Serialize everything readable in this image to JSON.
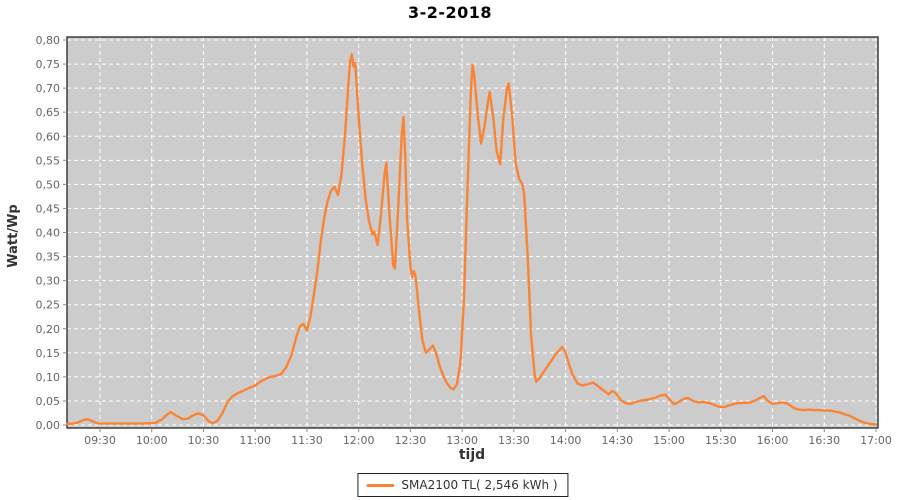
{
  "title": "3-2-2018",
  "chart_data": {
    "type": "line",
    "title": "3-2-2018",
    "xlabel": "tijd",
    "ylabel": "Watt/Wp",
    "legend": "SMA2100 TL( 2,546 kWh )",
    "legend_position": "bottom-center",
    "grid": true,
    "ylim": [
      0,
      0.8
    ],
    "x_range": [
      "09:11",
      "17:00"
    ],
    "x_ticks": [
      "09:30",
      "10:00",
      "10:30",
      "11:00",
      "11:30",
      "12:00",
      "12:30",
      "13:00",
      "13:30",
      "14:00",
      "14:30",
      "15:00",
      "15:30",
      "16:00",
      "16:30",
      "17:00"
    ],
    "y_ticks": [
      0,
      0.05,
      0.1,
      0.15,
      0.2,
      0.25,
      0.3,
      0.35,
      0.4,
      0.45,
      0.5,
      0.55,
      0.6,
      0.65,
      0.7,
      0.75,
      0.8
    ],
    "y_tick_labels": [
      "0,00",
      "0,05",
      "0,10",
      "0,15",
      "0,20",
      "0,25",
      "0,30",
      "0,35",
      "0,40",
      "0,45",
      "0,50",
      "0,55",
      "0,60",
      "0,65",
      "0,70",
      "0,75",
      "0,80"
    ],
    "colors": {
      "line": "#F98436",
      "plot_bg": "#CCCCCC",
      "grid": "#FFFFFF",
      "plot_border": "#222222",
      "tick": "#888888",
      "axis_text": "#666666",
      "axis_title_text": "#333333",
      "title_text": "#000000"
    },
    "series": [
      {
        "name": "SMA2100 TL( 2,546 kWh )",
        "points": [
          [
            "09:11",
            0.002
          ],
          [
            "09:14",
            0.003
          ],
          [
            "09:17",
            0.005
          ],
          [
            "09:20",
            0.01
          ],
          [
            "09:23",
            0.012
          ],
          [
            "09:26",
            0.007
          ],
          [
            "09:29",
            0.003
          ],
          [
            "09:35",
            0.003
          ],
          [
            "09:45",
            0.003
          ],
          [
            "09:55",
            0.003
          ],
          [
            "10:02",
            0.004
          ],
          [
            "10:06",
            0.012
          ],
          [
            "10:09",
            0.022
          ],
          [
            "10:11",
            0.027
          ],
          [
            "10:14",
            0.02
          ],
          [
            "10:18",
            0.012
          ],
          [
            "10:21",
            0.013
          ],
          [
            "10:24",
            0.02
          ],
          [
            "10:27",
            0.024
          ],
          [
            "10:30",
            0.02
          ],
          [
            "10:33",
            0.008
          ],
          [
            "10:35",
            0.004
          ],
          [
            "10:38",
            0.008
          ],
          [
            "10:41",
            0.025
          ],
          [
            "10:44",
            0.048
          ],
          [
            "10:47",
            0.06
          ],
          [
            "10:50",
            0.066
          ],
          [
            "10:53",
            0.071
          ],
          [
            "10:56",
            0.076
          ],
          [
            "11:00",
            0.082
          ],
          [
            "11:03",
            0.09
          ],
          [
            "11:06",
            0.096
          ],
          [
            "11:09",
            0.1
          ],
          [
            "11:12",
            0.102
          ],
          [
            "11:15",
            0.106
          ],
          [
            "11:18",
            0.12
          ],
          [
            "11:21",
            0.145
          ],
          [
            "11:24",
            0.185
          ],
          [
            "11:26",
            0.205
          ],
          [
            "11:28",
            0.21
          ],
          [
            "11:30",
            0.196
          ],
          [
            "11:32",
            0.225
          ],
          [
            "11:34",
            0.27
          ],
          [
            "11:36",
            0.32
          ],
          [
            "11:38",
            0.38
          ],
          [
            "11:40",
            0.43
          ],
          [
            "11:42",
            0.465
          ],
          [
            "11:44",
            0.487
          ],
          [
            "11:46",
            0.495
          ],
          [
            "11:48",
            0.478
          ],
          [
            "11:50",
            0.52
          ],
          [
            "11:52",
            0.6
          ],
          [
            "11:54",
            0.705
          ],
          [
            "11:55",
            0.755
          ],
          [
            "11:56",
            0.77
          ],
          [
            "11:57",
            0.745
          ],
          [
            "11:58",
            0.752
          ],
          [
            "12:00",
            0.64
          ],
          [
            "12:02",
            0.545
          ],
          [
            "12:04",
            0.47
          ],
          [
            "12:06",
            0.424
          ],
          [
            "12:08",
            0.396
          ],
          [
            "12:09",
            0.402
          ],
          [
            "12:11",
            0.374
          ],
          [
            "12:13",
            0.44
          ],
          [
            "12:15",
            0.52
          ],
          [
            "12:16",
            0.545
          ],
          [
            "12:18",
            0.43
          ],
          [
            "12:20",
            0.332
          ],
          [
            "12:21",
            0.325
          ],
          [
            "12:23",
            0.455
          ],
          [
            "12:25",
            0.605
          ],
          [
            "12:26",
            0.64
          ],
          [
            "12:27",
            0.56
          ],
          [
            "12:28",
            0.43
          ],
          [
            "12:30",
            0.33
          ],
          [
            "12:31",
            0.308
          ],
          [
            "12:32",
            0.32
          ],
          [
            "12:33",
            0.308
          ],
          [
            "12:35",
            0.238
          ],
          [
            "12:37",
            0.175
          ],
          [
            "12:39",
            0.15
          ],
          [
            "12:41",
            0.157
          ],
          [
            "12:43",
            0.165
          ],
          [
            "12:45",
            0.148
          ],
          [
            "12:47",
            0.122
          ],
          [
            "12:49",
            0.103
          ],
          [
            "12:51",
            0.088
          ],
          [
            "12:53",
            0.078
          ],
          [
            "12:55",
            0.074
          ],
          [
            "12:57",
            0.085
          ],
          [
            "12:59",
            0.13
          ],
          [
            "13:01",
            0.26
          ],
          [
            "13:03",
            0.48
          ],
          [
            "13:05",
            0.69
          ],
          [
            "13:06",
            0.748
          ],
          [
            "13:07",
            0.728
          ],
          [
            "13:09",
            0.645
          ],
          [
            "13:11",
            0.585
          ],
          [
            "13:13",
            0.622
          ],
          [
            "13:15",
            0.672
          ],
          [
            "13:16",
            0.692
          ],
          [
            "13:18",
            0.64
          ],
          [
            "13:20",
            0.57
          ],
          [
            "13:22",
            0.542
          ],
          [
            "13:24",
            0.64
          ],
          [
            "13:26",
            0.7
          ],
          [
            "13:27",
            0.71
          ],
          [
            "13:29",
            0.645
          ],
          [
            "13:31",
            0.545
          ],
          [
            "13:33",
            0.512
          ],
          [
            "13:35",
            0.5
          ],
          [
            "13:36",
            0.478
          ],
          [
            "13:38",
            0.35
          ],
          [
            "13:40",
            0.185
          ],
          [
            "13:42",
            0.105
          ],
          [
            "13:43",
            0.09
          ],
          [
            "13:45",
            0.098
          ],
          [
            "13:48",
            0.114
          ],
          [
            "13:51",
            0.13
          ],
          [
            "13:54",
            0.146
          ],
          [
            "13:57",
            0.158
          ],
          [
            "13:58",
            0.162
          ],
          [
            "14:00",
            0.15
          ],
          [
            "14:02",
            0.126
          ],
          [
            "14:04",
            0.105
          ],
          [
            "14:07",
            0.086
          ],
          [
            "14:10",
            0.082
          ],
          [
            "14:13",
            0.085
          ],
          [
            "14:16",
            0.088
          ],
          [
            "14:19",
            0.08
          ],
          [
            "14:22",
            0.072
          ],
          [
            "14:25",
            0.064
          ],
          [
            "14:27",
            0.071
          ],
          [
            "14:29",
            0.066
          ],
          [
            "14:32",
            0.052
          ],
          [
            "14:35",
            0.045
          ],
          [
            "14:38",
            0.044
          ],
          [
            "14:41",
            0.048
          ],
          [
            "14:44",
            0.051
          ],
          [
            "14:48",
            0.053
          ],
          [
            "14:52",
            0.057
          ],
          [
            "14:55",
            0.061
          ],
          [
            "14:58",
            0.063
          ],
          [
            "15:01",
            0.05
          ],
          [
            "15:03",
            0.043
          ],
          [
            "15:06",
            0.049
          ],
          [
            "15:09",
            0.055
          ],
          [
            "15:11",
            0.056
          ],
          [
            "15:14",
            0.05
          ],
          [
            "15:17",
            0.047
          ],
          [
            "15:20",
            0.048
          ],
          [
            "15:23",
            0.046
          ],
          [
            "15:26",
            0.042
          ],
          [
            "15:29",
            0.038
          ],
          [
            "15:32",
            0.037
          ],
          [
            "15:35",
            0.041
          ],
          [
            "15:38",
            0.044
          ],
          [
            "15:41",
            0.046
          ],
          [
            "15:44",
            0.046
          ],
          [
            "15:47",
            0.047
          ],
          [
            "15:50",
            0.051
          ],
          [
            "15:53",
            0.057
          ],
          [
            "15:55",
            0.06
          ],
          [
            "15:57",
            0.051
          ],
          [
            "16:00",
            0.044
          ],
          [
            "16:03",
            0.045
          ],
          [
            "16:06",
            0.047
          ],
          [
            "16:09",
            0.044
          ],
          [
            "16:12",
            0.036
          ],
          [
            "16:15",
            0.032
          ],
          [
            "16:18",
            0.031
          ],
          [
            "16:21",
            0.032
          ],
          [
            "16:24",
            0.031
          ],
          [
            "16:27",
            0.031
          ],
          [
            "16:30",
            0.03
          ],
          [
            "16:33",
            0.03
          ],
          [
            "16:36",
            0.028
          ],
          [
            "16:39",
            0.026
          ],
          [
            "16:42",
            0.022
          ],
          [
            "16:45",
            0.019
          ],
          [
            "16:48",
            0.013
          ],
          [
            "16:51",
            0.008
          ],
          [
            "16:54",
            0.004
          ],
          [
            "16:57",
            0.002
          ],
          [
            "17:00",
            0.001
          ]
        ]
      }
    ]
  }
}
